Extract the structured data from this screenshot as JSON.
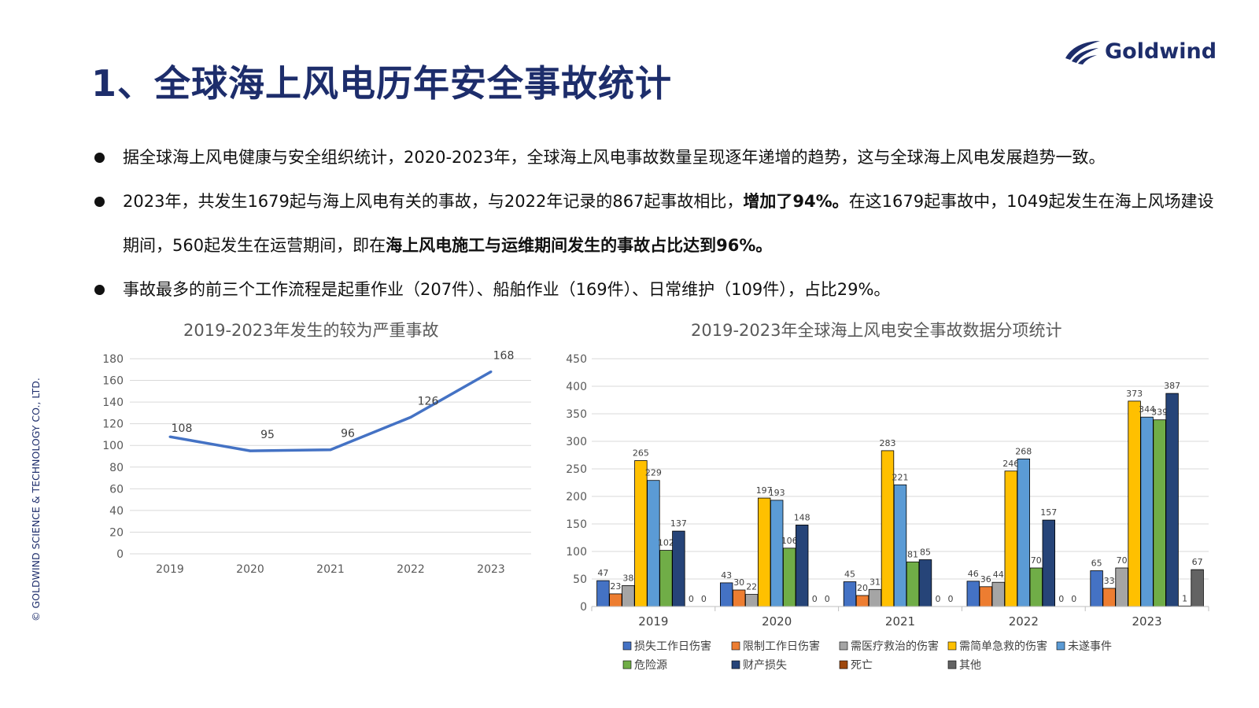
{
  "title": "1、全球海上风电历年安全事故统计",
  "logo_text": "Goldwind",
  "side_text": "© GOLDWIND SCIENCE & TECHNOLOGY CO., LTD.",
  "bullets": [
    {
      "parts": [
        {
          "text": "据全球海上风电健康与安全组织统计，2020-2023年，全球海上风电事故数量呈现逐年递增的趋势，这与全球海上风电发展趋势一致。",
          "bold": false
        }
      ]
    },
    {
      "parts": [
        {
          "text": "2023年，共发生1679起与海上风电有关的事故，与2022年记录的867起事故相比，",
          "bold": false
        },
        {
          "text": "增加了94%。",
          "bold": true
        },
        {
          "text": "在这1679起事故中，1049起发生在海上风场建设期间，560起发生在运营期间，即在",
          "bold": false
        },
        {
          "text": "海上风电施工与运维期间发生的事故占比达到96%。",
          "bold": true
        }
      ]
    },
    {
      "parts": [
        {
          "text": "事故最多的前三个工作流程是起重作业（207件）、船舶作业（169件）、日常维护（109件），占比29%。",
          "bold": false
        }
      ]
    }
  ],
  "chart_data": [
    {
      "type": "line",
      "title": "2019-2023年发生的较为严重事故",
      "categories": [
        "2019",
        "2020",
        "2021",
        "2022",
        "2023"
      ],
      "series": [
        {
          "values": [
            108,
            95,
            96,
            126,
            168
          ],
          "color": "#4472c4"
        }
      ],
      "ylim": [
        0,
        180
      ],
      "yticks": [
        0,
        20,
        40,
        60,
        80,
        100,
        120,
        140,
        160,
        180
      ],
      "grid": true
    },
    {
      "type": "bar",
      "title": "2019-2023年全球海上风电安全事故数据分项统计",
      "categories": [
        "2019",
        "2020",
        "2021",
        "2022",
        "2023"
      ],
      "ylim": [
        0,
        450
      ],
      "yticks": [
        0,
        50,
        100,
        150,
        200,
        250,
        300,
        350,
        400,
        450
      ],
      "grid": true,
      "legend_position": "bottom",
      "series": [
        {
          "name": "损失工作日伤害",
          "color": "#4472c4",
          "values": [
            47,
            43,
            45,
            46,
            65
          ]
        },
        {
          "name": "限制工作日伤害",
          "color": "#ed7d31",
          "values": [
            23,
            30,
            20,
            36,
            33
          ]
        },
        {
          "name": "需医疗救治的伤害",
          "color": "#a5a5a5",
          "values": [
            38,
            22,
            31,
            44,
            70
          ]
        },
        {
          "name": "需简单急救的伤害",
          "color": "#ffc000",
          "values": [
            265,
            197,
            283,
            246,
            373
          ]
        },
        {
          "name": "未遂事件",
          "color": "#5b9bd5",
          "values": [
            229,
            193,
            221,
            268,
            344
          ]
        },
        {
          "name": "危险源",
          "color": "#70ad47",
          "values": [
            102,
            106,
            81,
            70,
            339
          ]
        },
        {
          "name": "财产损失",
          "color": "#264478",
          "values": [
            137,
            148,
            85,
            157,
            387
          ]
        },
        {
          "name": "死亡",
          "color": "#9e480e",
          "values": [
            0,
            0,
            0,
            0,
            1
          ]
        },
        {
          "name": "其他",
          "color": "#636363",
          "values": [
            0,
            0,
            0,
            0,
            67
          ]
        }
      ]
    }
  ]
}
